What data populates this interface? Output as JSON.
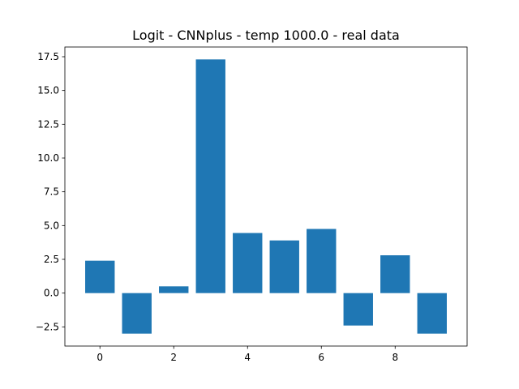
{
  "chart_data": {
    "type": "bar",
    "title": "Logit - CNNplus - temp 1000.0 - real data",
    "xlabel": "",
    "ylabel": "",
    "categories": [
      0,
      1,
      2,
      3,
      4,
      5,
      6,
      7,
      8,
      9
    ],
    "values": [
      2.4,
      -3.0,
      0.5,
      17.3,
      4.45,
      3.9,
      4.75,
      -2.4,
      2.8,
      -3.0
    ],
    "xlim": [
      -0.95,
      9.95
    ],
    "ylim": [
      -3.92,
      18.22
    ],
    "x_ticks": [
      0,
      2,
      4,
      6,
      8
    ],
    "x_tick_labels": [
      "0",
      "2",
      "4",
      "6",
      "8"
    ],
    "y_ticks": [
      -2.5,
      0.0,
      2.5,
      5.0,
      7.5,
      10.0,
      12.5,
      15.0,
      17.5
    ],
    "y_tick_labels": [
      "−2.5",
      "0.0",
      "2.5",
      "5.0",
      "7.5",
      "10.0",
      "12.5",
      "15.0",
      "17.5"
    ],
    "grid": false,
    "bar_width": 0.8,
    "bar_color": "#1f77b4",
    "axis_color": "#000000"
  }
}
